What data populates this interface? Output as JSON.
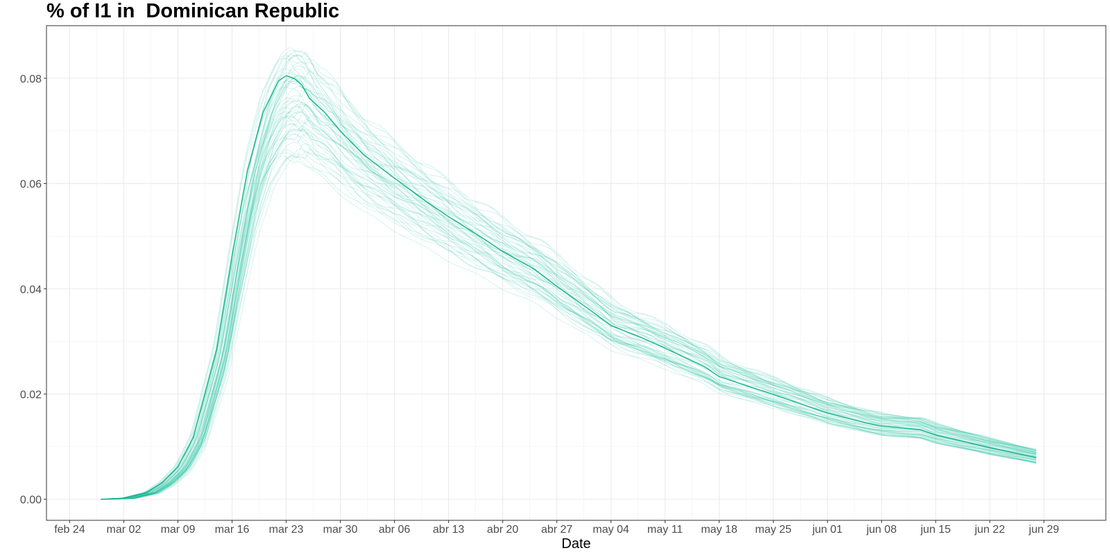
{
  "chart_data": {
    "type": "line",
    "title": "% of I1 in  Dominican Republic",
    "xlabel": "Date",
    "ylabel": "",
    "x_range": [
      "2020-02-24",
      "2020-06-30"
    ],
    "xlim": [
      "2020-02-21",
      "2020-07-07"
    ],
    "ylim": [
      -0.004,
      0.09
    ],
    "y_ticks": [
      0.0,
      0.02,
      0.04,
      0.06,
      0.08
    ],
    "y_tick_labels": [
      "0.00",
      "0.02",
      "0.04",
      "0.06",
      "0.08"
    ],
    "x_ticks": [
      "2020-02-24",
      "2020-03-02",
      "2020-03-09",
      "2020-03-16",
      "2020-03-23",
      "2020-03-30",
      "2020-04-06",
      "2020-04-13",
      "2020-04-20",
      "2020-04-27",
      "2020-05-04",
      "2020-05-11",
      "2020-05-18",
      "2020-05-25",
      "2020-06-01",
      "2020-06-08",
      "2020-06-15",
      "2020-06-22",
      "2020-06-29"
    ],
    "x_tick_labels": [
      "feb 24",
      "mar 02",
      "mar 09",
      "mar 16",
      "mar 23",
      "mar 30",
      "abr 06",
      "abr 13",
      "abr 20",
      "abr 27",
      "may 04",
      "may 11",
      "may 18",
      "may 25",
      "jun 01",
      "jun 08",
      "jun 15",
      "jun 22",
      "jun 29"
    ],
    "grid": true,
    "legend": "none",
    "line_color": "#1abc9c",
    "series": [
      {
        "role": "median",
        "x": [
          "2020-02-28",
          "2020-03-02",
          "2020-03-05",
          "2020-03-07",
          "2020-03-09",
          "2020-03-11",
          "2020-03-14",
          "2020-03-16",
          "2020-03-18",
          "2020-03-20",
          "2020-03-22",
          "2020-03-23",
          "2020-03-24",
          "2020-03-25",
          "2020-03-26",
          "2020-03-28",
          "2020-03-30",
          "2020-04-02",
          "2020-04-06",
          "2020-04-10",
          "2020-04-13",
          "2020-04-17",
          "2020-04-20",
          "2020-04-24",
          "2020-04-27",
          "2020-05-02",
          "2020-05-04",
          "2020-05-08",
          "2020-05-11",
          "2020-05-16",
          "2020-05-18",
          "2020-05-25",
          "2020-06-01",
          "2020-06-06",
          "2020-06-08",
          "2020-06-13",
          "2020-06-15",
          "2020-06-22",
          "2020-06-28"
        ],
        "values": [
          0.0,
          0.0002,
          0.0013,
          0.0032,
          0.0062,
          0.0118,
          0.0285,
          0.0462,
          0.0625,
          0.0735,
          0.0795,
          0.0805,
          0.08,
          0.0788,
          0.0762,
          0.0735,
          0.07,
          0.0655,
          0.061,
          0.0567,
          0.0537,
          0.05,
          0.0471,
          0.0438,
          0.0405,
          0.0352,
          0.033,
          0.0307,
          0.0287,
          0.0253,
          0.0233,
          0.0199,
          0.0164,
          0.0145,
          0.0139,
          0.0132,
          0.0122,
          0.0098,
          0.0079
        ]
      }
    ],
    "ensemble": {
      "count": 60,
      "peak_range": [
        0.065,
        0.086
      ],
      "peak_date_range": [
        "2020-03-23",
        "2020-03-27"
      ],
      "end_value_range": [
        0.0066,
        0.0097
      ],
      "opacity": 0.2
    }
  }
}
